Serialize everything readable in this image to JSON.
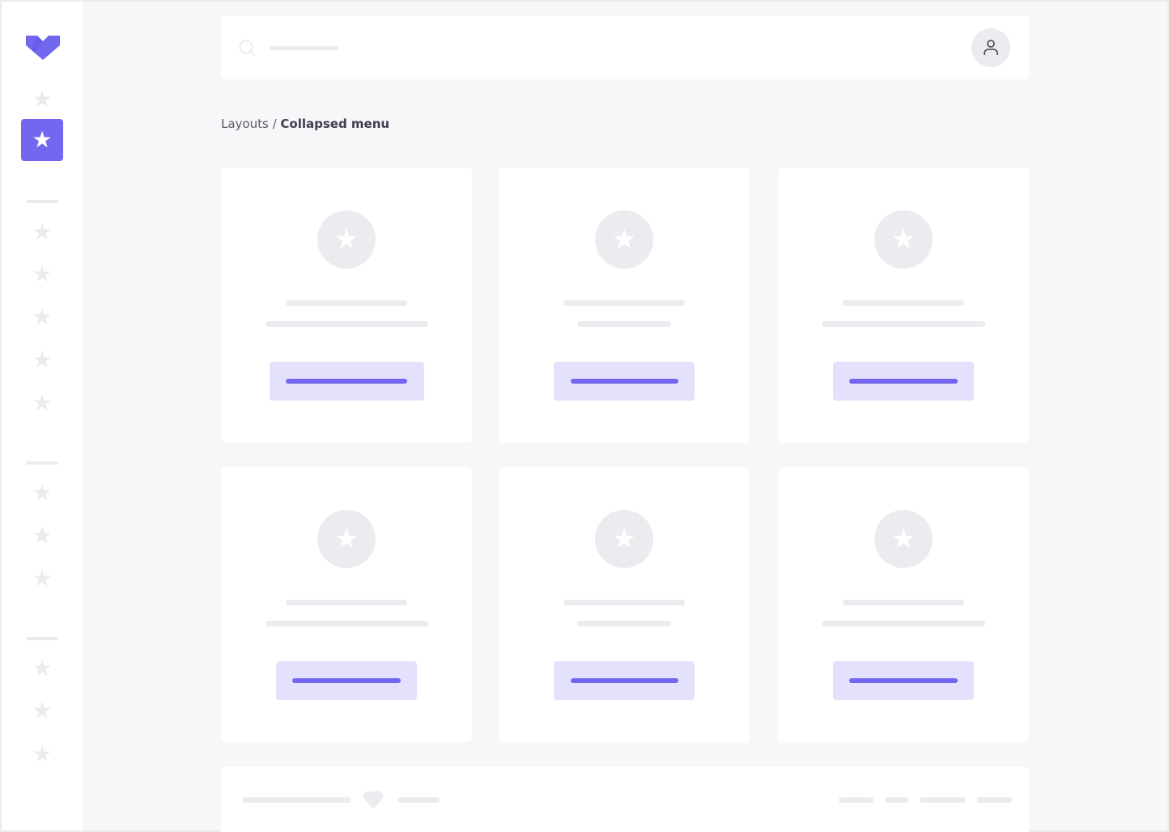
{
  "colors": {
    "accent": "#7367f0",
    "accent_light": "#e4e1fc",
    "placeholder": "#ececf0",
    "background": "#f7f7f9"
  },
  "breadcrumb": {
    "parent": "Layouts",
    "separator": " / ",
    "current": "Collapsed menu"
  },
  "icons": {
    "logo": "brand-logo",
    "nav": "star-icon",
    "search": "search-icon",
    "user": "user-icon",
    "card": "star-icon",
    "footer": "heart-icon"
  },
  "sidebar": {
    "active_index": 1,
    "groups": [
      2,
      5,
      3,
      3
    ]
  }
}
